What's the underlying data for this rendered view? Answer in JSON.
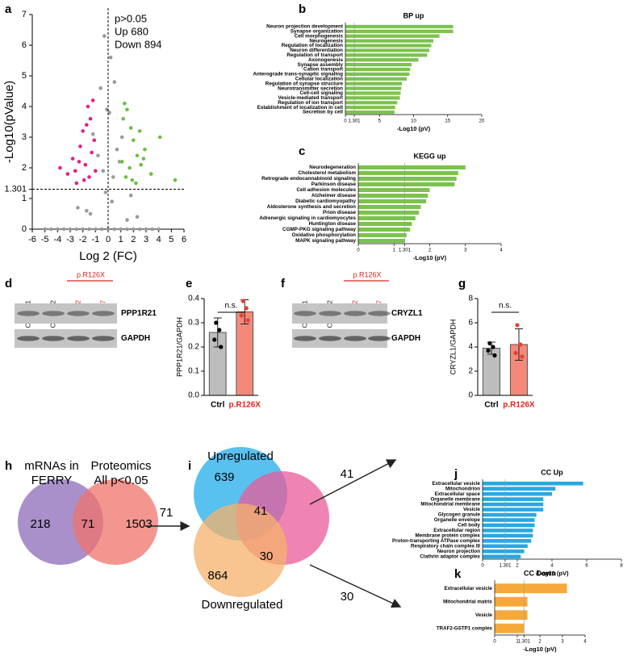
{
  "panel_labels": [
    "a",
    "b",
    "c",
    "d",
    "e",
    "f",
    "g",
    "h",
    "i",
    "j",
    "k"
  ],
  "chart_data": [
    {
      "type": "scatter",
      "xlabel": "Log 2 (FC)",
      "ylabel": "-Log10(pValue)",
      "annotations": [
        "p>0.05",
        "Up 680",
        "Down 894"
      ],
      "xlim": [
        -6,
        6
      ],
      "xticks": [
        -6,
        -5,
        -4,
        -3,
        -2,
        -1,
        0,
        1,
        2,
        3,
        4,
        5,
        6
      ],
      "ylim": [
        0,
        7
      ],
      "yticks": [
        0,
        1,
        1.301,
        2,
        3,
        4,
        5,
        6,
        7
      ],
      "reference_lines": [
        {
          "axis": "x",
          "value": 0
        },
        {
          "axis": "y",
          "value": 1.301
        }
      ],
      "series": [
        {
          "color": "#9a9a9a",
          "x": [
            -5,
            -4.5,
            -4,
            -3.5,
            -3,
            -2.5,
            -2,
            -1.5,
            -1,
            -0.5,
            0,
            0.5,
            1,
            1.5,
            2,
            2.5,
            3,
            3.5,
            4,
            -0.3,
            0.2,
            -0.6,
            0.5,
            -0.1,
            0.1,
            -1.2,
            1.1,
            -0.8,
            0.7,
            -0.4,
            0.4,
            -0.2,
            0.3,
            1.8,
            -1.7,
            2.3,
            -2.4,
            1.5,
            -1.4,
            0.9
          ],
          "y": [
            0,
            0,
            0,
            0,
            0,
            0,
            0,
            0,
            0,
            0,
            0,
            0,
            0,
            0,
            0,
            0,
            0,
            0,
            0,
            6.3,
            5.6,
            4.6,
            4.8,
            3.9,
            3.8,
            3.1,
            3.0,
            2.4,
            2.6,
            1.9,
            1.7,
            1.2,
            0.9,
            1.1,
            0.6,
            0.4,
            0.7,
            0.3,
            0.5,
            2.2
          ]
        },
        {
          "color": "#e0218a",
          "x": [
            -3.8,
            -3.2,
            -2.8,
            -2.5,
            -2.2,
            -2,
            -1.8,
            -1.6,
            -1.4,
            -1.2,
            -1.1,
            -1.5,
            -2.6,
            -1.9,
            -1.3,
            -1.7,
            -2.3,
            -1.0
          ],
          "y": [
            2.0,
            1.8,
            2.3,
            1.5,
            2.7,
            3.2,
            2.1,
            4.0,
            3.6,
            4.2,
            2.9,
            1.7,
            1.9,
            1.6,
            2.5,
            3.4,
            2.2,
            1.9
          ]
        },
        {
          "color": "#6abf3f",
          "x": [
            1.2,
            1.5,
            1.8,
            2.0,
            2.3,
            2.6,
            2.9,
            3.4,
            4.1,
            5.3,
            1.1,
            1.4,
            1.7,
            2.2,
            2.5,
            1.3,
            1.9,
            2.8
          ],
          "y": [
            3.6,
            3.9,
            3.3,
            2.9,
            2.4,
            2.1,
            2.6,
            1.8,
            3.0,
            1.6,
            2.2,
            1.7,
            2.0,
            1.5,
            3.2,
            4.1,
            1.6,
            2.3
          ]
        }
      ]
    },
    {
      "type": "hbar",
      "title": "BP up",
      "xlabel": "-Log10 (pV)",
      "color": "#7cc24e",
      "categories": [
        "Neuron projection development",
        "Synapse organization",
        "Cell morphogenesis",
        "Neurogenesis",
        "Regulation of localization",
        "Neuron differentiation",
        "Regulation of transport",
        "Axonogenesis",
        "Synapse assembly",
        "Cation transport",
        "Anterograde trans-synaptic signaling",
        "Cellular localization",
        "Regulation of synapse structure",
        "Neurotransmitter secretion",
        "Cell-cell signaling",
        "Vesicle-mediated transport",
        "Regulation of ion transport",
        "Establishment of localization in cell",
        "Secretion by cell"
      ],
      "values": [
        15.8,
        15.8,
        13.8,
        12.9,
        12.6,
        12.3,
        12,
        10.7,
        9.7,
        9.5,
        9.4,
        9,
        8.3,
        8.2,
        8.1,
        8,
        7.6,
        7.3,
        7.2
      ],
      "xlim": [
        0,
        20
      ],
      "xticks": [
        0,
        1.301,
        5,
        10,
        15,
        20
      ],
      "reference_lines": [
        {
          "axis": "x",
          "value": 1.301
        }
      ]
    },
    {
      "type": "hbar",
      "title": "KEGG up",
      "xlabel": "-Log10 (pV)",
      "color": "#7cc24e",
      "categories": [
        "Neurodegeneration",
        "Cholesterol metabolism",
        "Retrograde endocannabinoid signaling",
        "Parkinson disease",
        "Cell adhesion molecules",
        "Alzheimer disease",
        "Diabetic cardiomyopathy",
        "Aldosterone synthesis and secretion",
        "Prion disease",
        "Adrenergic signaling in cardiomyocytes",
        "Huntington disease",
        "CGMP-PKG signaling pathway",
        "Oxidative phosphorylation",
        "MAPK signaling pathway"
      ],
      "values": [
        3.0,
        2.8,
        2.75,
        2.7,
        2.0,
        1.95,
        1.9,
        1.75,
        1.7,
        1.6,
        1.5,
        1.45,
        1.35,
        1.3
      ],
      "xlim": [
        0,
        4
      ],
      "xticks": [
        0,
        1,
        1.301,
        2,
        3,
        4
      ],
      "reference_lines": [
        {
          "axis": "x",
          "value": 1.301
        }
      ]
    },
    {
      "type": "dotbar",
      "ylabel": "PPP1R21/GAPDH",
      "annotation": "n.s.",
      "categories": [
        "Ctrl",
        "p.R126X"
      ],
      "category_colors": [
        "#000000",
        "#d7261e"
      ],
      "values": [
        0.26,
        0.345
      ],
      "errors": [
        0.06,
        0.05
      ],
      "colors": [
        "#bdbdbd",
        "#f4897a"
      ],
      "point_colors": [
        "#000000",
        "#e8402f"
      ],
      "points": [
        [
          0.3,
          0.27,
          0.23,
          0.2
        ],
        [
          0.39,
          0.36,
          0.33,
          0.31
        ]
      ],
      "ylim": [
        0,
        0.4
      ],
      "yticks": [
        {
          "value": 0,
          "label": "0.0"
        },
        0.1,
        0.2,
        0.3,
        0.4
      ]
    },
    {
      "type": "dotbar",
      "ylabel": "CRYZL1/GAPDH",
      "annotation": "n.s.",
      "categories": [
        "Ctrl",
        "p.R126X"
      ],
      "category_colors": [
        "#000000",
        "#d7261e"
      ],
      "values": [
        3.9,
        4.2
      ],
      "errors": [
        0.5,
        1.3
      ],
      "colors": [
        "#bdbdbd",
        "#f4897a"
      ],
      "point_colors": [
        "#000000",
        "#e8402f"
      ],
      "points": [
        [
          4.3,
          4.0,
          3.7,
          3.3
        ],
        [
          5.8,
          4.2,
          3.5,
          3.2
        ]
      ],
      "ylim": [
        0,
        8
      ],
      "yticks": [
        0,
        2,
        4,
        6,
        8
      ]
    },
    {
      "type": "hbar",
      "title": "CC Up",
      "xlabel": "-Log10 (pV)",
      "color": "#29a8e0",
      "categories": [
        "Extracellular vesicle",
        "Mitochondrion",
        "Extracellular space",
        "Organelle membrane",
        "Mitochondrial membrane",
        "Vesicle",
        "Glycogen granule",
        "Organelle envelope",
        "Cell body",
        "Extracellular region",
        "Membrane protein complex",
        "Proton-transporting ATPase complex",
        "Respiratory chain complex III",
        "Neuron projection",
        "Clathrin adaptor complex"
      ],
      "values": [
        5.8,
        4.2,
        4.0,
        3.5,
        3.5,
        3.5,
        3.1,
        3.0,
        3.0,
        2.9,
        2.9,
        2.8,
        2.6,
        2.4,
        2.2
      ],
      "xlim": [
        0,
        8
      ],
      "xticks": [
        0,
        1.301,
        2,
        4,
        6,
        8
      ],
      "reference_lines": [
        {
          "axis": "x",
          "value": 1.301
        }
      ]
    },
    {
      "type": "hbar",
      "title": "CC Down",
      "xlabel": "-Log10 (pV)",
      "color": "#f5a93b",
      "categories": [
        "Extracellular vesicle",
        "Mitochondrial matrix",
        "Vesicle",
        "TRAF2-GSTP1 complex"
      ],
      "values": [
        3.2,
        1.45,
        1.45,
        1.3
      ],
      "xlim": [
        0,
        4
      ],
      "xticks": [
        0,
        1,
        1.301,
        2,
        3,
        4
      ],
      "reference_lines": [
        {
          "axis": "x",
          "value": 1.301
        }
      ]
    }
  ],
  "blots": [
    {
      "lanes": [
        "Control 1",
        "Control 2",
        "126-2",
        "126-7"
      ],
      "group": "p.R126X",
      "bands": [
        "PPP1R21",
        "GAPDH"
      ]
    },
    {
      "lanes": [
        "Control 1",
        "Control 2",
        "126-2",
        "126-7"
      ],
      "group": "p.R126X",
      "bands": [
        "CRYZL1",
        "GAPDH"
      ]
    }
  ],
  "venn_h": {
    "sets": [
      [
        "mRNAs in",
        "FERRY"
      ],
      [
        "Proteomics",
        "All p<0.05"
      ]
    ],
    "counts": [
      218,
      71,
      1503
    ],
    "arrow_label": 71
  },
  "venn_i": {
    "labels": [
      "Upregulated",
      "Downregulated"
    ],
    "counts": [
      639,
      41,
      30,
      864
    ],
    "arrow_labels": [
      41,
      30
    ]
  }
}
